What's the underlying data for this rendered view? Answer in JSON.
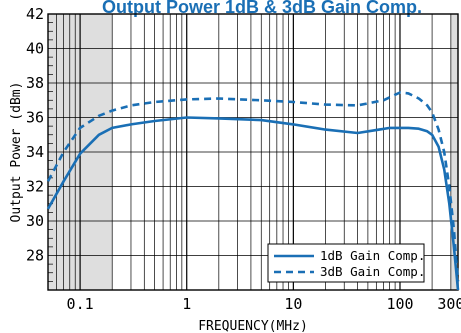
{
  "chart_data": {
    "type": "line",
    "title": "Output Power 1dB & 3dB Gain Comp.",
    "xlabel": "FREQUENCY(MHz)",
    "ylabel": "Output Power (dBm)",
    "x_scale": "log",
    "xlim": [
      0.05,
      350
    ],
    "ylim": [
      26,
      42
    ],
    "x_ticks": [
      {
        "value": 0.1,
        "label": "0.1"
      },
      {
        "value": 1,
        "label": "1"
      },
      {
        "value": 10,
        "label": "10"
      },
      {
        "value": 100,
        "label": "100"
      },
      {
        "value": 300,
        "label": "300"
      }
    ],
    "y_ticks": [
      {
        "value": 28,
        "label": "28"
      },
      {
        "value": 30,
        "label": "30"
      },
      {
        "value": 32,
        "label": "32"
      },
      {
        "value": 34,
        "label": "34"
      },
      {
        "value": 36,
        "label": "36"
      },
      {
        "value": 38,
        "label": "38"
      },
      {
        "value": 40,
        "label": "40"
      },
      {
        "value": 42,
        "label": "42"
      }
    ],
    "shaded_x_ranges": [
      [
        0.05,
        0.2
      ],
      [
        300,
        350
      ]
    ],
    "grid": true,
    "legend_position": "bottom-right",
    "series": [
      {
        "name": "1dB Gain Comp.",
        "style": "solid",
        "color": "#1a6fb5",
        "x": [
          0.05,
          0.07,
          0.1,
          0.15,
          0.2,
          0.3,
          0.5,
          1,
          2,
          5,
          10,
          20,
          40,
          80,
          120,
          150,
          180,
          200,
          230,
          260,
          290,
          320,
          350
        ],
        "y": [
          30.7,
          32.3,
          33.9,
          35.0,
          35.4,
          35.6,
          35.8,
          36.0,
          35.95,
          35.85,
          35.6,
          35.3,
          35.1,
          35.4,
          35.4,
          35.35,
          35.2,
          35.0,
          34.3,
          33.0,
          31.0,
          28.5,
          26.0
        ]
      },
      {
        "name": "3dB Gain Comp.",
        "style": "dashed",
        "color": "#1a6fb5",
        "x": [
          0.05,
          0.07,
          0.1,
          0.15,
          0.2,
          0.3,
          0.5,
          1,
          2,
          5,
          10,
          20,
          40,
          70,
          100,
          120,
          150,
          180,
          200,
          230,
          260,
          290,
          320,
          350
        ],
        "y": [
          32.3,
          34.0,
          35.4,
          36.1,
          36.4,
          36.7,
          36.9,
          37.05,
          37.1,
          37.0,
          36.9,
          36.75,
          36.7,
          37.0,
          37.45,
          37.4,
          37.1,
          36.7,
          36.3,
          35.3,
          34.0,
          32.0,
          29.5,
          26.5
        ]
      }
    ]
  }
}
